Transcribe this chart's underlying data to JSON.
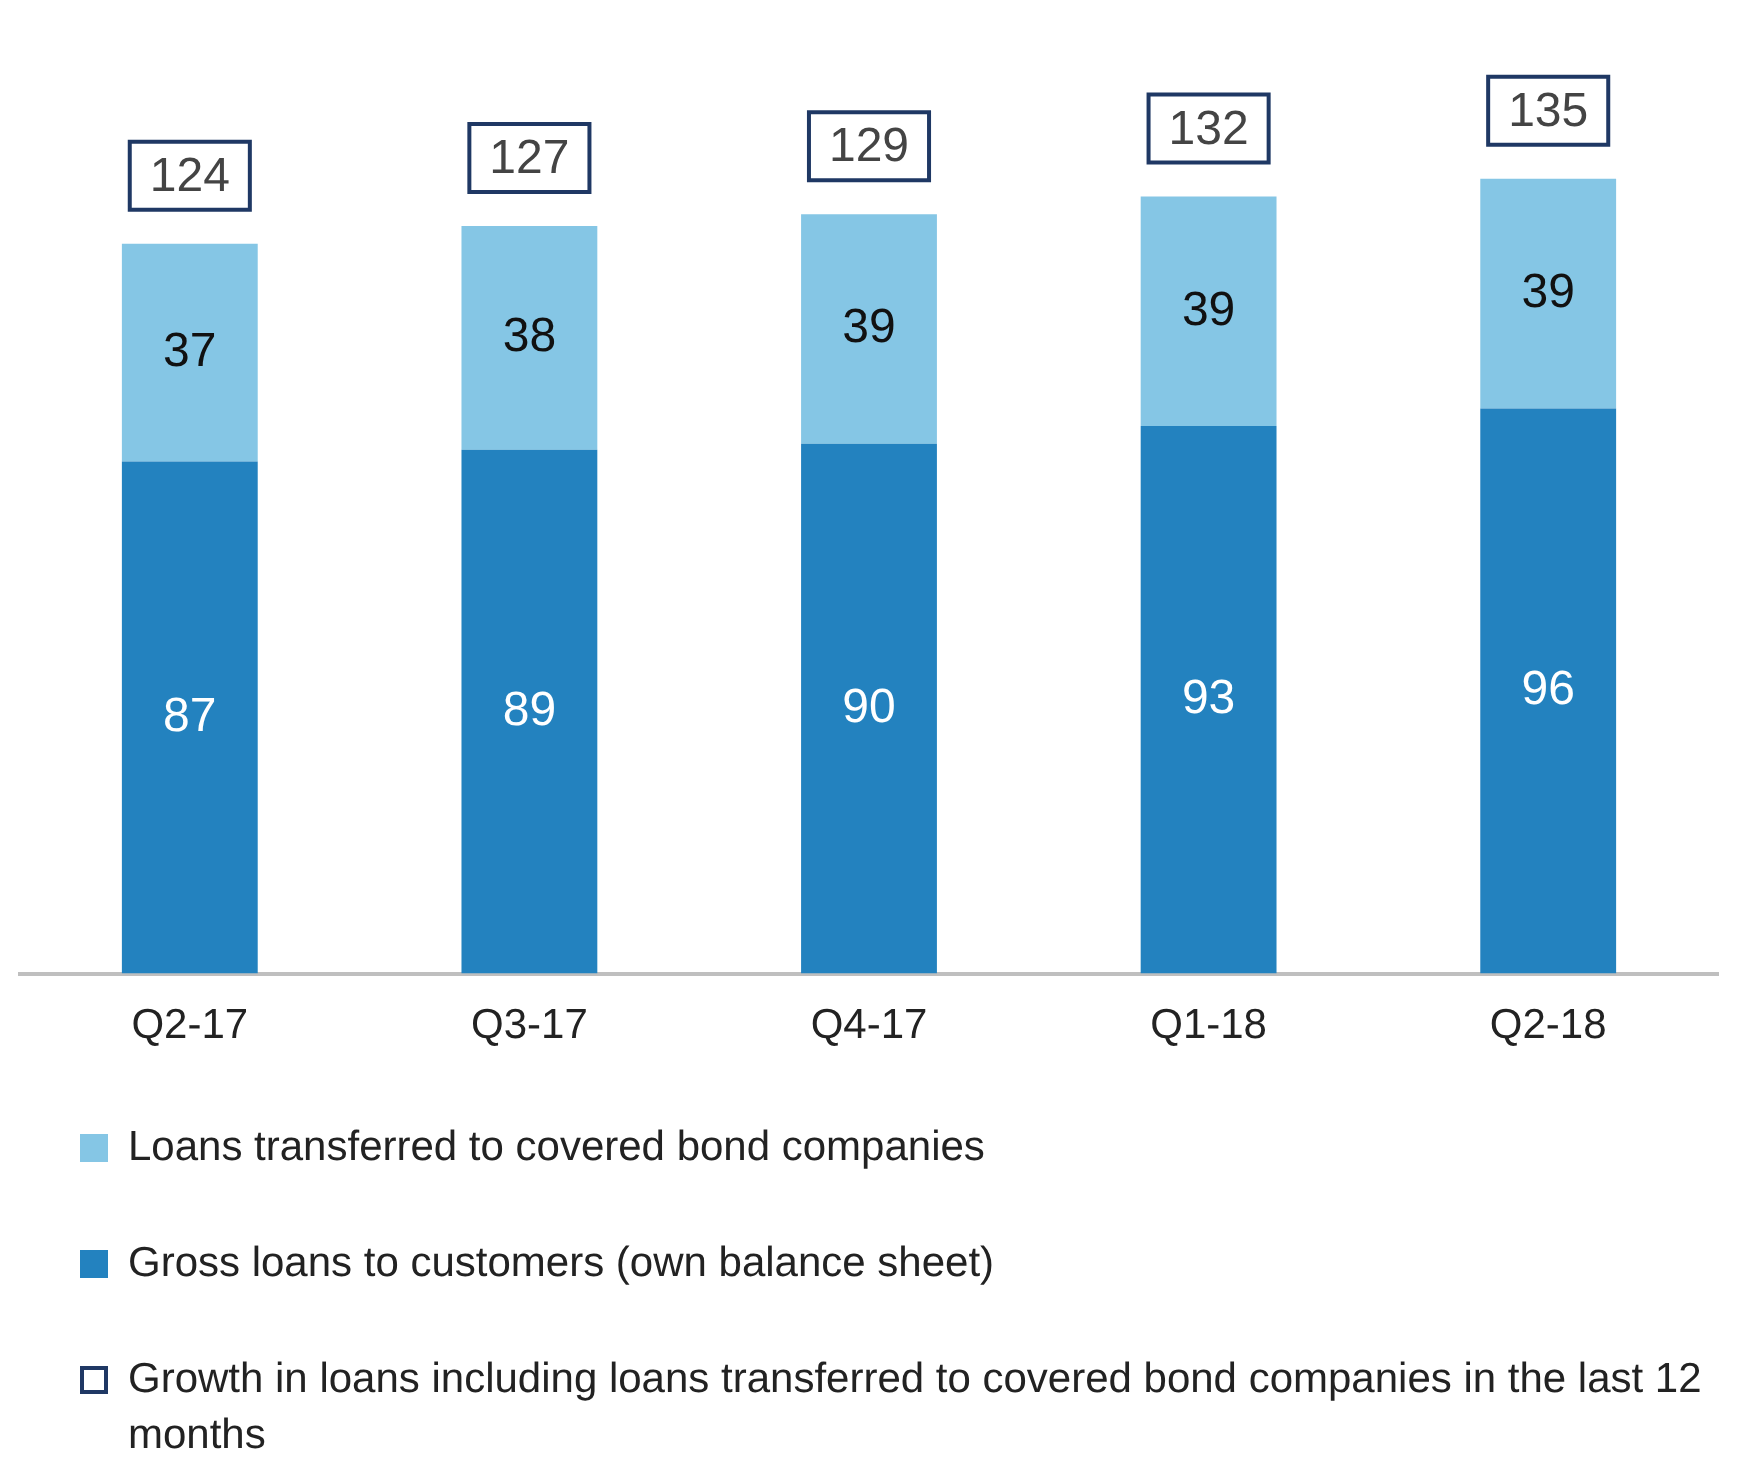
{
  "chart_data": {
    "type": "bar",
    "stacked": true,
    "categories": [
      "Q2-17",
      "Q3-17",
      "Q4-17",
      "Q1-18",
      "Q2-18"
    ],
    "series": [
      {
        "name": "Gross loans to customers (own balance sheet)",
        "color": "#2382bf",
        "values": [
          87,
          89,
          90,
          93,
          96
        ]
      },
      {
        "name": "Loans transferred to covered bond companies",
        "color": "#85c6e5",
        "values": [
          37,
          38,
          39,
          39,
          39
        ]
      }
    ],
    "totals": [
      "124",
      "127",
      "129",
      "132",
      "135"
    ],
    "data_labels": true,
    "ylim": [
      0,
      145
    ],
    "tick_labels": "x",
    "grid": false,
    "legend": "bottom",
    "annotations": [
      "Growth in loans including loans transferred to covered bond companies in the last 12 months"
    ]
  }
}
